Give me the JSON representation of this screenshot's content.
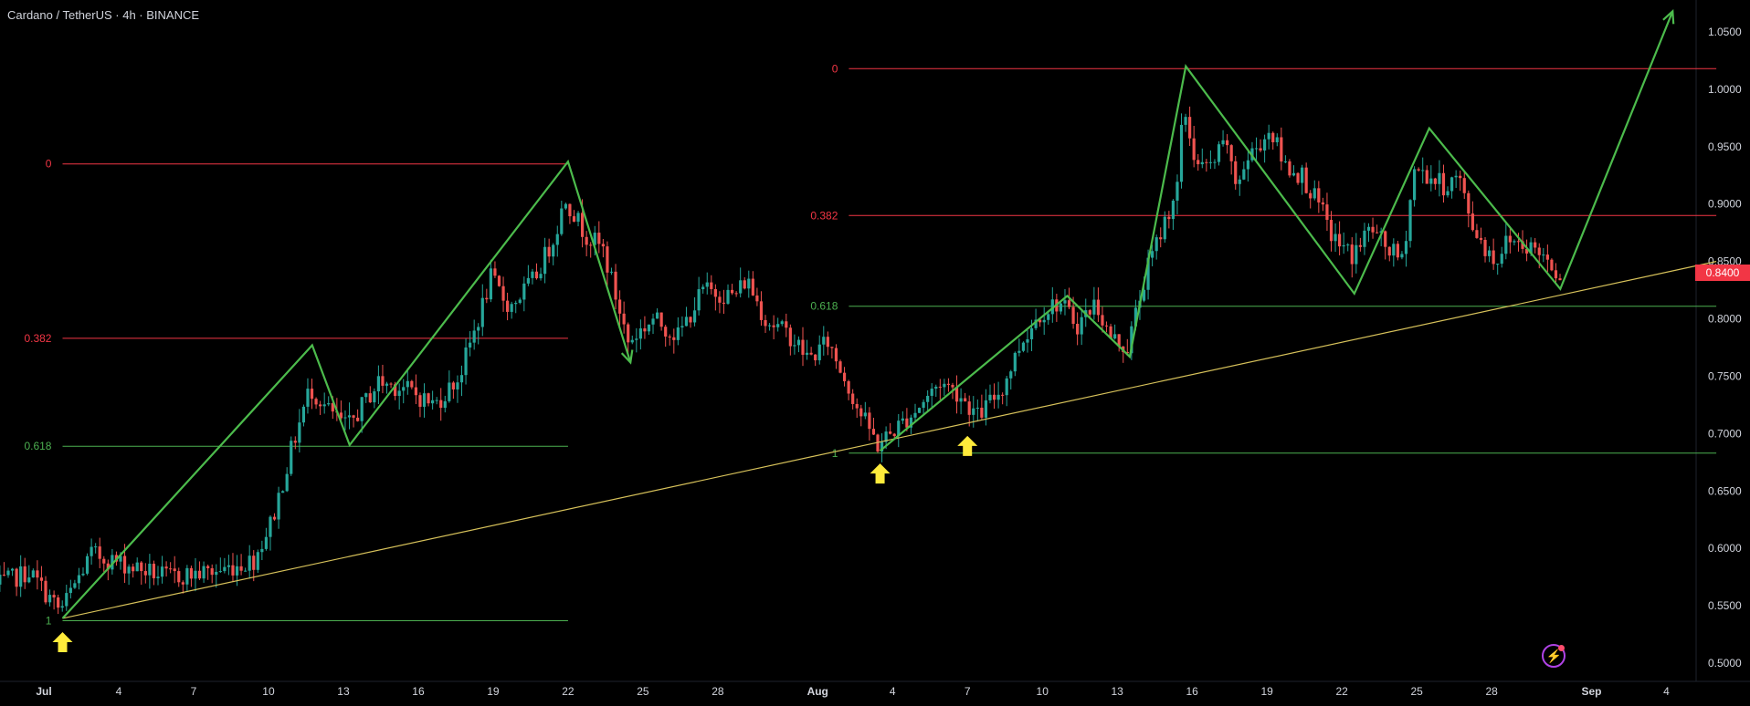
{
  "header": {
    "symbol_label": "Cardano / TetherUS · 4h · BINANCE"
  },
  "icons": {
    "bolt": "lightning-bolt-icon",
    "arrow": "up-arrow-icon"
  },
  "chart_data": {
    "type": "candlestick",
    "title": "Cardano / TetherUS · 4h · BINANCE",
    "ylim": [
      0.48,
      1.08
    ],
    "grid": false,
    "y_ticks": [
      "1.0500",
      "1.0000",
      "0.9500",
      "0.9000",
      "0.8500",
      "0.8000",
      "0.7500",
      "0.7000",
      "0.6500",
      "0.6000",
      "0.5500",
      "0.5000"
    ],
    "x_ticks": [
      {
        "label": "Jul",
        "date": "2024-07-01"
      },
      {
        "label": "4",
        "date": "2024-07-04"
      },
      {
        "label": "7",
        "date": "2024-07-07"
      },
      {
        "label": "10",
        "date": "2024-07-10"
      },
      {
        "label": "13",
        "date": "2024-07-13"
      },
      {
        "label": "16",
        "date": "2024-07-16"
      },
      {
        "label": "19",
        "date": "2024-07-19"
      },
      {
        "label": "22",
        "date": "2024-07-22"
      },
      {
        "label": "25",
        "date": "2024-07-25"
      },
      {
        "label": "28",
        "date": "2024-07-28"
      },
      {
        "label": "Aug",
        "date": "2024-08-01"
      },
      {
        "label": "4",
        "date": "2024-08-04"
      },
      {
        "label": "7",
        "date": "2024-08-07"
      },
      {
        "label": "10",
        "date": "2024-08-10"
      },
      {
        "label": "13",
        "date": "2024-08-13"
      },
      {
        "label": "16",
        "date": "2024-08-16"
      },
      {
        "label": "19",
        "date": "2024-08-19"
      },
      {
        "label": "22",
        "date": "2024-08-22"
      },
      {
        "label": "25",
        "date": "2024-08-25"
      },
      {
        "label": "28",
        "date": "2024-08-28"
      },
      {
        "label": "Sep",
        "date": "2024-09-01"
      },
      {
        "label": "4",
        "date": "2024-09-04"
      }
    ],
    "last_price": "0.8400",
    "colors": {
      "up": "#26a69a",
      "down": "#ef5350",
      "fib_red": "#f23645",
      "fib_green": "#4caf50",
      "pattern": "#4cbb4c",
      "trendline": "#d6c15a",
      "marker": "#ffeb3b",
      "axis_text": "#d1d4dc"
    },
    "price_path": [
      [
        "2024-06-29T00:00",
        0.565
      ],
      [
        "2024-06-30T12:00",
        0.58
      ],
      [
        "2024-07-01T18:00",
        0.545
      ],
      [
        "2024-07-03T00:00",
        0.595
      ],
      [
        "2024-07-04T12:00",
        0.585
      ],
      [
        "2024-07-06T00:00",
        0.575
      ],
      [
        "2024-07-08T00:00",
        0.58
      ],
      [
        "2024-07-09T12:00",
        0.59
      ],
      [
        "2024-07-10T06:00",
        0.625
      ],
      [
        "2024-07-11T00:00",
        0.685
      ],
      [
        "2024-07-11T18:00",
        0.74
      ],
      [
        "2024-07-12T12:00",
        0.72
      ],
      [
        "2024-07-13T06:00",
        0.705
      ],
      [
        "2024-07-14T12:00",
        0.745
      ],
      [
        "2024-07-15T12:00",
        0.74
      ],
      [
        "2024-07-16T18:00",
        0.725
      ],
      [
        "2024-07-17T18:00",
        0.75
      ],
      [
        "2024-07-18T12:00",
        0.8
      ],
      [
        "2024-07-19T00:00",
        0.835
      ],
      [
        "2024-07-19T18:00",
        0.81
      ],
      [
        "2024-07-20T18:00",
        0.835
      ],
      [
        "2024-07-21T12:00",
        0.87
      ],
      [
        "2024-07-22T00:00",
        0.905
      ],
      [
        "2024-07-22T18:00",
        0.875
      ],
      [
        "2024-07-23T12:00",
        0.86
      ],
      [
        "2024-07-24T00:00",
        0.82
      ],
      [
        "2024-07-24T12:00",
        0.78
      ],
      [
        "2024-07-25T12:00",
        0.8
      ],
      [
        "2024-07-26T12:00",
        0.785
      ],
      [
        "2024-07-27T12:00",
        0.825
      ],
      [
        "2024-07-28T18:00",
        0.82
      ],
      [
        "2024-07-29T06:00",
        0.835
      ],
      [
        "2024-07-30T00:00",
        0.8
      ],
      [
        "2024-07-31T00:00",
        0.785
      ],
      [
        "2024-07-31T18:00",
        0.765
      ],
      [
        "2024-08-01T12:00",
        0.78
      ],
      [
        "2024-08-02T06:00",
        0.745
      ],
      [
        "2024-08-02T18:00",
        0.72
      ],
      [
        "2024-08-03T12:00",
        0.69
      ],
      [
        "2024-08-04T06:00",
        0.705
      ],
      [
        "2024-08-05T00:00",
        0.72
      ],
      [
        "2024-08-06T00:00",
        0.745
      ],
      [
        "2024-08-06T18:00",
        0.735
      ],
      [
        "2024-08-07T12:00",
        0.715
      ],
      [
        "2024-08-08T12:00",
        0.74
      ],
      [
        "2024-08-09T06:00",
        0.78
      ],
      [
        "2024-08-10T00:00",
        0.805
      ],
      [
        "2024-08-10T18:00",
        0.815
      ],
      [
        "2024-08-11T12:00",
        0.795
      ],
      [
        "2024-08-12T06:00",
        0.815
      ],
      [
        "2024-08-12T18:00",
        0.785
      ],
      [
        "2024-08-13T12:00",
        0.775
      ],
      [
        "2024-08-14T06:00",
        0.84
      ],
      [
        "2024-08-14T18:00",
        0.87
      ],
      [
        "2024-08-15T12:00",
        0.915
      ],
      [
        "2024-08-15T18:00",
        0.985
      ],
      [
        "2024-08-16T06:00",
        0.935
      ],
      [
        "2024-08-16T18:00",
        0.93
      ],
      [
        "2024-08-17T12:00",
        0.955
      ],
      [
        "2024-08-17T18:00",
        0.915
      ],
      [
        "2024-08-18T12:00",
        0.945
      ],
      [
        "2024-08-19T06:00",
        0.965
      ],
      [
        "2024-08-19T18:00",
        0.935
      ],
      [
        "2024-08-20T12:00",
        0.925
      ],
      [
        "2024-08-21T06:00",
        0.895
      ],
      [
        "2024-08-21T18:00",
        0.87
      ],
      [
        "2024-08-22T12:00",
        0.855
      ],
      [
        "2024-08-23T06:00",
        0.88
      ],
      [
        "2024-08-23T18:00",
        0.865
      ],
      [
        "2024-08-24T12:00",
        0.85
      ],
      [
        "2024-08-25T00:00",
        0.93
      ],
      [
        "2024-08-25T12:00",
        0.925
      ],
      [
        "2024-08-26T06:00",
        0.915
      ],
      [
        "2024-08-26T18:00",
        0.925
      ],
      [
        "2024-08-27T06:00",
        0.885
      ],
      [
        "2024-08-27T18:00",
        0.865
      ],
      [
        "2024-08-28T06:00",
        0.85
      ],
      [
        "2024-08-28T18:00",
        0.87
      ],
      [
        "2024-08-29T12:00",
        0.865
      ],
      [
        "2024-08-30T06:00",
        0.855
      ],
      [
        "2024-08-30T18:00",
        0.84
      ]
    ],
    "fib_levels": [
      {
        "label": "0",
        "price": 0.935,
        "start": "2024-07-01T18:00",
        "end": "2024-07-22T00:00",
        "color": "red"
      },
      {
        "label": "0.382",
        "price": 0.783,
        "start": "2024-07-01T18:00",
        "end": "2024-07-22T00:00",
        "color": "red"
      },
      {
        "label": "0.618",
        "price": 0.689,
        "start": "2024-07-01T18:00",
        "end": "2024-07-22T00:00",
        "color": "green"
      },
      {
        "label": "1",
        "price": 0.537,
        "start": "2024-07-01T18:00",
        "end": "2024-07-22T00:00",
        "color": "green"
      },
      {
        "label": "0",
        "price": 1.018,
        "start": "2024-08-02T06:00",
        "end": "2024-09-06T00:00",
        "color": "red"
      },
      {
        "label": "0.382",
        "price": 0.89,
        "start": "2024-08-02T06:00",
        "end": "2024-09-06T00:00",
        "color": "red"
      },
      {
        "label": "0.618",
        "price": 0.811,
        "start": "2024-08-02T06:00",
        "end": "2024-09-06T00:00",
        "color": "green"
      },
      {
        "label": "1",
        "price": 0.683,
        "start": "2024-08-02T06:00",
        "end": "2024-09-06T00:00",
        "color": "green"
      }
    ],
    "trendline": [
      [
        "2024-07-01T18:00",
        0.539
      ],
      [
        "2024-09-06T00:00",
        0.85
      ]
    ],
    "pattern_lines": [
      [
        [
          "2024-07-01T18:00",
          0.539
        ],
        [
          "2024-07-11T18:00",
          0.777
        ],
        [
          "2024-07-13T06:00",
          0.69
        ],
        [
          "2024-07-22T00:00",
          0.937
        ],
        [
          "2024-07-24T12:00",
          0.762
        ]
      ],
      [
        [
          "2024-08-03T12:00",
          0.685
        ],
        [
          "2024-08-11T00:00",
          0.82
        ],
        [
          "2024-08-13T12:00",
          0.767
        ],
        [
          "2024-08-15T18:00",
          1.02
        ],
        [
          "2024-08-22T12:00",
          0.822
        ],
        [
          "2024-08-25T12:00",
          0.966
        ],
        [
          "2024-08-30T18:00",
          0.826
        ],
        [
          "2024-09-04T06:00",
          1.068
        ]
      ]
    ],
    "markers": [
      {
        "date": "2024-07-01T18:00",
        "price": 0.527
      },
      {
        "date": "2024-08-03T12:00",
        "price": 0.674
      },
      {
        "date": "2024-08-07T00:00",
        "price": 0.698
      }
    ],
    "bolt_date": "2024-08-30T12:00",
    "bolt_price": 0.506
  }
}
